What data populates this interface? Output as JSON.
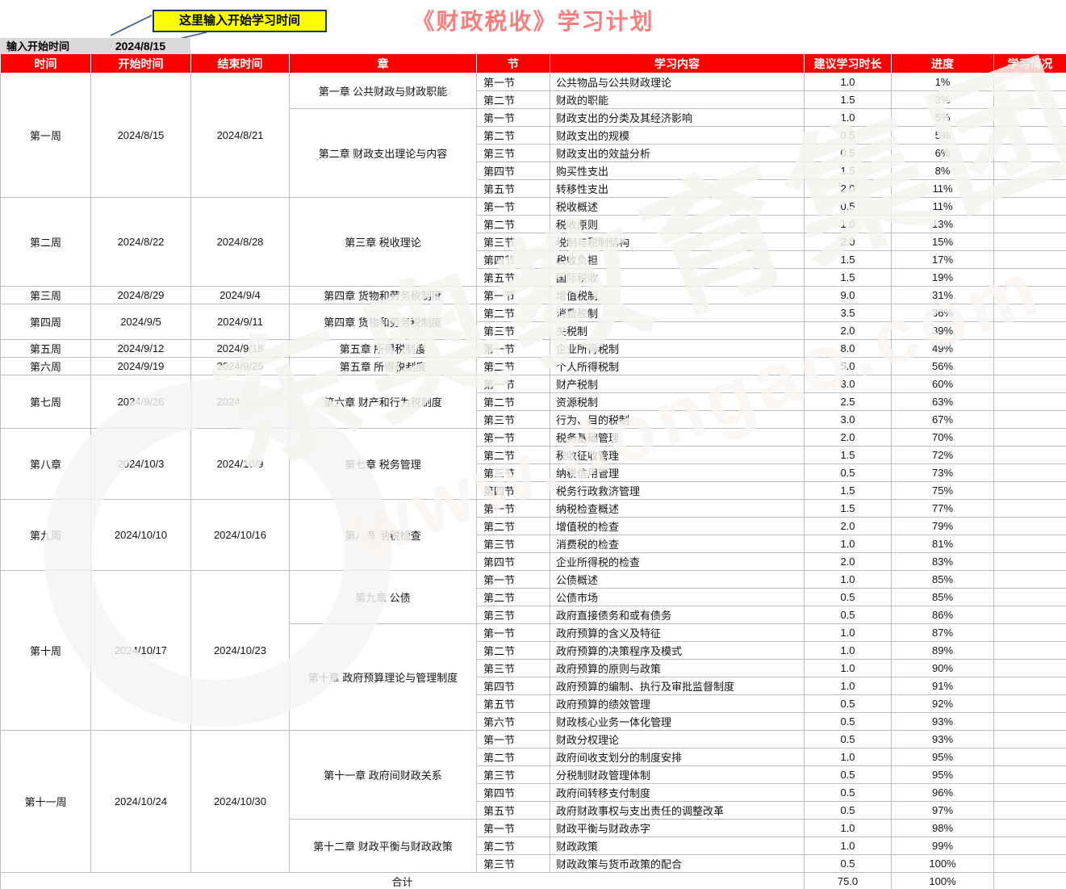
{
  "title": "《财政税收》学习计划",
  "input": {
    "label": "输入开始时间",
    "value": "2024/8/15"
  },
  "callout": {
    "text": "这里输入开始学习时间"
  },
  "columns": [
    "时间",
    "开始时间",
    "结束时间",
    "章",
    "节",
    "学习内容",
    "建议学习时长",
    "进度",
    "学习情况"
  ],
  "weeks": [
    {
      "label": "第一周",
      "start": "2024/8/15",
      "end": "2024/8/21",
      "chapters": [
        {
          "name": "第一章 公共财政与财政职能",
          "count": 2
        },
        {
          "name": "第二章 财政支出理论与内容",
          "count": 5
        }
      ]
    },
    {
      "label": "第二周",
      "start": "2024/8/22",
      "end": "2024/8/28",
      "chapters": [
        {
          "name": "第三章 税收理论",
          "count": 5
        }
      ]
    },
    {
      "label": "第三周",
      "start": "2024/8/29",
      "end": "2024/9/4",
      "chapters": [
        {
          "name": "第四章 货物和劳务税制度",
          "count": 1
        }
      ]
    },
    {
      "label": "第四周",
      "start": "2024/9/5",
      "end": "2024/9/11",
      "chapters": [
        {
          "name": "第四章 货物和劳务税制度",
          "count": 2
        }
      ]
    },
    {
      "label": "第五周",
      "start": "2024/9/12",
      "end": "2024/9/18",
      "chapters": [
        {
          "name": "第五章 所得税制度",
          "count": 1
        }
      ]
    },
    {
      "label": "第六周",
      "start": "2024/9/19",
      "end": "2024/9/25",
      "chapters": [
        {
          "name": "第五章 所得税制度",
          "count": 1
        }
      ]
    },
    {
      "label": "第七周",
      "start": "2024/9/26",
      "end": "2024/10/2",
      "chapters": [
        {
          "name": "第六章 财产和行为税制度",
          "count": 3
        }
      ]
    },
    {
      "label": "第八章",
      "start": "2024/10/3",
      "end": "2024/10/9",
      "chapters": [
        {
          "name": "第七章 税务管理",
          "count": 4
        }
      ]
    },
    {
      "label": "第九周",
      "start": "2024/10/10",
      "end": "2024/10/16",
      "chapters": [
        {
          "name": "第八章 纳税检查",
          "count": 4
        }
      ]
    },
    {
      "label": "第十周",
      "start": "2024/10/17",
      "end": "2024/10/23",
      "chapters": [
        {
          "name": "第九章 公债",
          "count": 3
        },
        {
          "name": "第十章 政府预算理论与管理制度",
          "count": 6
        }
      ]
    },
    {
      "label": "第十一周",
      "start": "2024/10/24",
      "end": "2024/10/30",
      "chapters": [
        {
          "name": "第十一章 政府间财政关系",
          "count": 5
        },
        {
          "name": "第十二章 财政平衡与财政政策",
          "count": 3
        }
      ]
    }
  ],
  "rows": [
    {
      "section": "第一节",
      "content": "公共物品与公共财政理论",
      "hours": "1.0",
      "progress": "1%"
    },
    {
      "section": "第二节",
      "content": "财政的职能",
      "hours": "1.5",
      "progress": "3%"
    },
    {
      "section": "第一节",
      "content": "财政支出的分类及其经济影响",
      "hours": "1.0",
      "progress": "5%"
    },
    {
      "section": "第二节",
      "content": "财政支出的规模",
      "hours": "0.5",
      "progress": "5%"
    },
    {
      "section": "第三节",
      "content": "财政支出的效益分析",
      "hours": "0.5",
      "progress": "6%"
    },
    {
      "section": "第四节",
      "content": "购买性支出",
      "hours": "1.5",
      "progress": "8%"
    },
    {
      "section": "第五节",
      "content": "转移性支出",
      "hours": "2.0",
      "progress": "11%"
    },
    {
      "section": "第一节",
      "content": "税收概述",
      "hours": "0.5",
      "progress": "11%"
    },
    {
      "section": "第二节",
      "content": "税收原则",
      "hours": "1.0",
      "progress": "13%"
    },
    {
      "section": "第三节",
      "content": "税制与税制结构",
      "hours": "2.0",
      "progress": "15%"
    },
    {
      "section": "第四节",
      "content": "税收负担",
      "hours": "1.5",
      "progress": "17%"
    },
    {
      "section": "第五节",
      "content": "国际税收",
      "hours": "1.5",
      "progress": "19%"
    },
    {
      "section": "第一节",
      "content": "增值税制",
      "hours": "9.0",
      "progress": "31%"
    },
    {
      "section": "第二节",
      "content": "消费税制",
      "hours": "3.5",
      "progress": "36%"
    },
    {
      "section": "第三节",
      "content": "关税制",
      "hours": "2.0",
      "progress": "39%"
    },
    {
      "section": "第一节",
      "content": "企业所得税制",
      "hours": "8.0",
      "progress": "49%"
    },
    {
      "section": "第二节",
      "content": "个人所得税制",
      "hours": "5.0",
      "progress": "56%"
    },
    {
      "section": "第一节",
      "content": "财产税制",
      "hours": "3.0",
      "progress": "60%"
    },
    {
      "section": "第二节",
      "content": "资源税制",
      "hours": "2.5",
      "progress": "63%"
    },
    {
      "section": "第三节",
      "content": "行为、目的税制",
      "hours": "3.0",
      "progress": "67%"
    },
    {
      "section": "第一节",
      "content": "税务基础管理",
      "hours": "2.0",
      "progress": "70%"
    },
    {
      "section": "第二节",
      "content": "税收征收管理",
      "hours": "1.5",
      "progress": "72%"
    },
    {
      "section": "第三节",
      "content": "纳税信用管理",
      "hours": "0.5",
      "progress": "73%"
    },
    {
      "section": "第四节",
      "content": "税务行政救济管理",
      "hours": "1.5",
      "progress": "75%"
    },
    {
      "section": "第一节",
      "content": "纳税检查概述",
      "hours": "1.5",
      "progress": "77%"
    },
    {
      "section": "第二节",
      "content": "增值税的检查",
      "hours": "2.0",
      "progress": "79%"
    },
    {
      "section": "第三节",
      "content": "消费税的检查",
      "hours": "1.0",
      "progress": "81%"
    },
    {
      "section": "第四节",
      "content": "企业所得税的检查",
      "hours": "2.0",
      "progress": "83%"
    },
    {
      "section": "第一节",
      "content": "公债概述",
      "hours": "1.0",
      "progress": "85%"
    },
    {
      "section": "第二节",
      "content": "公债市场",
      "hours": "0.5",
      "progress": "85%"
    },
    {
      "section": "第三节",
      "content": "政府直接债务和或有债务",
      "hours": "0.5",
      "progress": "86%"
    },
    {
      "section": "第一节",
      "content": "政府预算的含义及特征",
      "hours": "1.0",
      "progress": "87%"
    },
    {
      "section": "第二节",
      "content": "政府预算的决策程序及模式",
      "hours": "1.0",
      "progress": "89%"
    },
    {
      "section": "第三节",
      "content": "政府预算的原则与政策",
      "hours": "1.0",
      "progress": "90%"
    },
    {
      "section": "第四节",
      "content": "政府预算的编制、执行及审批监督制度",
      "hours": "1.0",
      "progress": "91%"
    },
    {
      "section": "第五节",
      "content": "政府预算的绩效管理",
      "hours": "0.5",
      "progress": "92%"
    },
    {
      "section": "第六节",
      "content": "财政核心业务一体化管理",
      "hours": "0.5",
      "progress": "93%"
    },
    {
      "section": "第一节",
      "content": "财政分权理论",
      "hours": "0.5",
      "progress": "93%"
    },
    {
      "section": "第二节",
      "content": "政府间收支划分的制度安排",
      "hours": "1.0",
      "progress": "95%"
    },
    {
      "section": "第三节",
      "content": "分税制财政管理体制",
      "hours": "0.5",
      "progress": "95%"
    },
    {
      "section": "第四节",
      "content": "政府间转移支付制度",
      "hours": "0.5",
      "progress": "96%"
    },
    {
      "section": "第五节",
      "content": "政府财政事权与支出责任的调整改革",
      "hours": "0.5",
      "progress": "97%"
    },
    {
      "section": "第一节",
      "content": "财政平衡与财政赤字",
      "hours": "1.0",
      "progress": "98%"
    },
    {
      "section": "第二节",
      "content": "财政政策",
      "hours": "1.0",
      "progress": "99%"
    },
    {
      "section": "第三节",
      "content": "财政政策与货币政策的配合",
      "hours": "0.5",
      "progress": "100%"
    }
  ],
  "total": {
    "label": "合计",
    "hours": "75.0",
    "progress": "100%"
  },
  "watermark": {
    "line1": "东奥教育集团",
    "line2": "www.dongao.com"
  },
  "colors": {
    "header_bg": "#fe0000",
    "header_text": "#ffffff",
    "title_color": "#f97e7e",
    "callout_bg": "#ffff00",
    "callout_border": "#17375e",
    "input_bg": "#d9d9d9",
    "grid": "#bdbdbd",
    "pointer_line": "#3a5795"
  }
}
